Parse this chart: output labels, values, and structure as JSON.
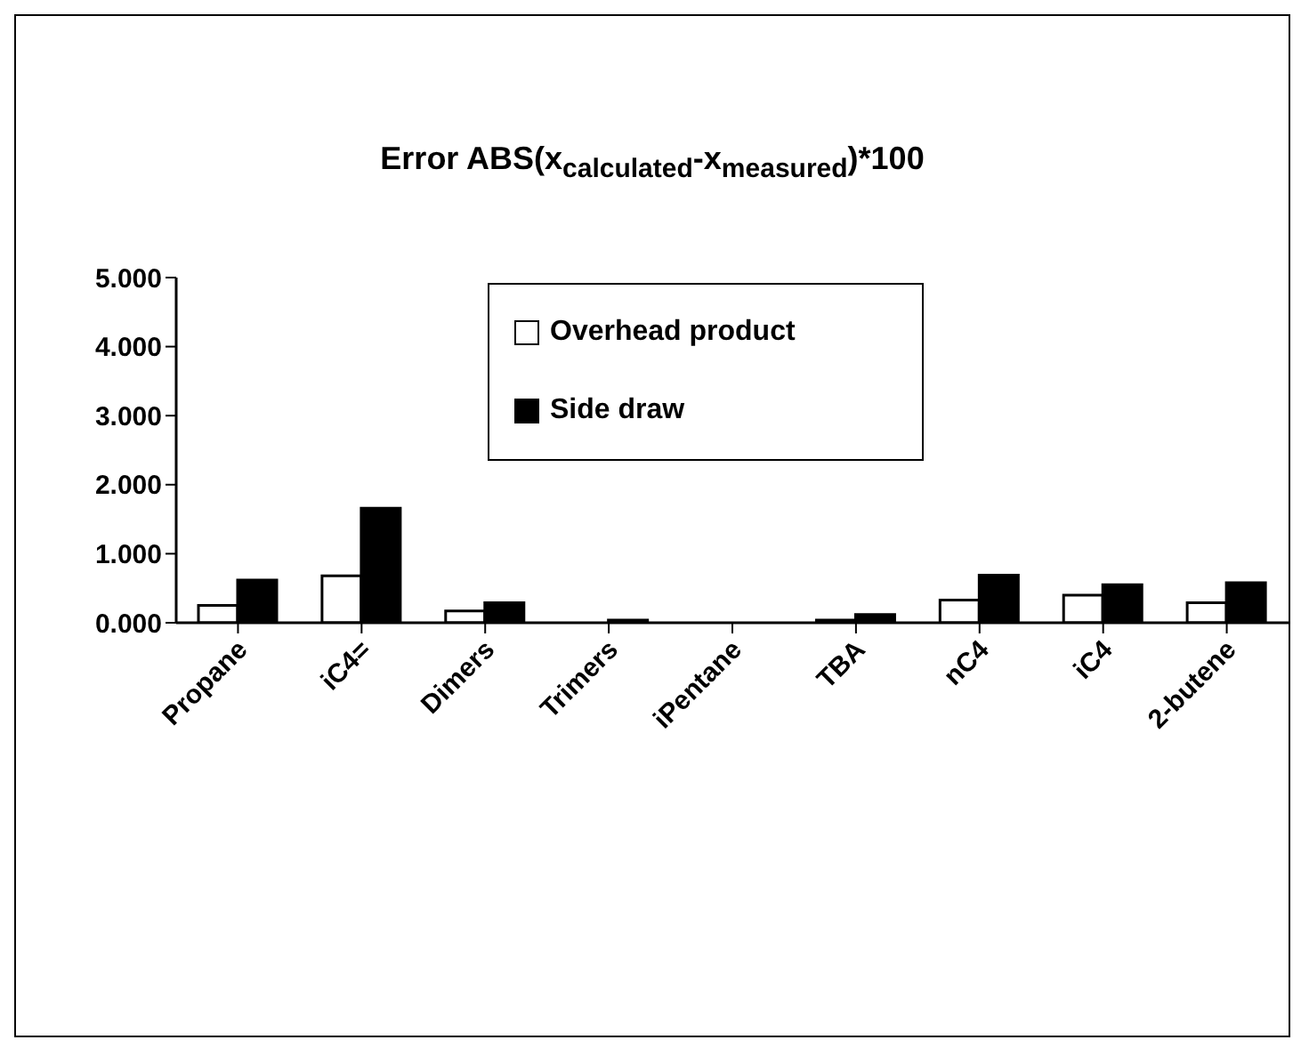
{
  "chart_data": {
    "type": "bar",
    "title": "Error ABS(x$_{calculated}$-x$_{measured}$)*100",
    "categories": [
      "Propane",
      "iC4=",
      "Dimers",
      "Trimers",
      "iPentane",
      "TBA",
      "nC4",
      "iC4",
      "2-butene"
    ],
    "series": [
      {
        "name": "Overhead product",
        "color": "#ffffff",
        "values": [
          0.25,
          0.68,
          0.17,
          0,
          0,
          0.04,
          0.33,
          0.4,
          0.29
        ]
      },
      {
        "name": "Side draw",
        "color": "#000000",
        "values": [
          0.62,
          1.66,
          0.29,
          0.04,
          0,
          0.12,
          0.69,
          0.55,
          0.58
        ]
      }
    ],
    "ylim": [
      0,
      5
    ],
    "yticks": [
      {
        "value": 0,
        "label": "0.000"
      },
      {
        "value": 1,
        "label": "1.000"
      },
      {
        "value": 2,
        "label": "2.000"
      },
      {
        "value": 3,
        "label": "3.000"
      },
      {
        "value": 4,
        "label": "4.000"
      },
      {
        "value": 5,
        "label": "5.000"
      }
    ],
    "grid": false,
    "legend": "top"
  }
}
